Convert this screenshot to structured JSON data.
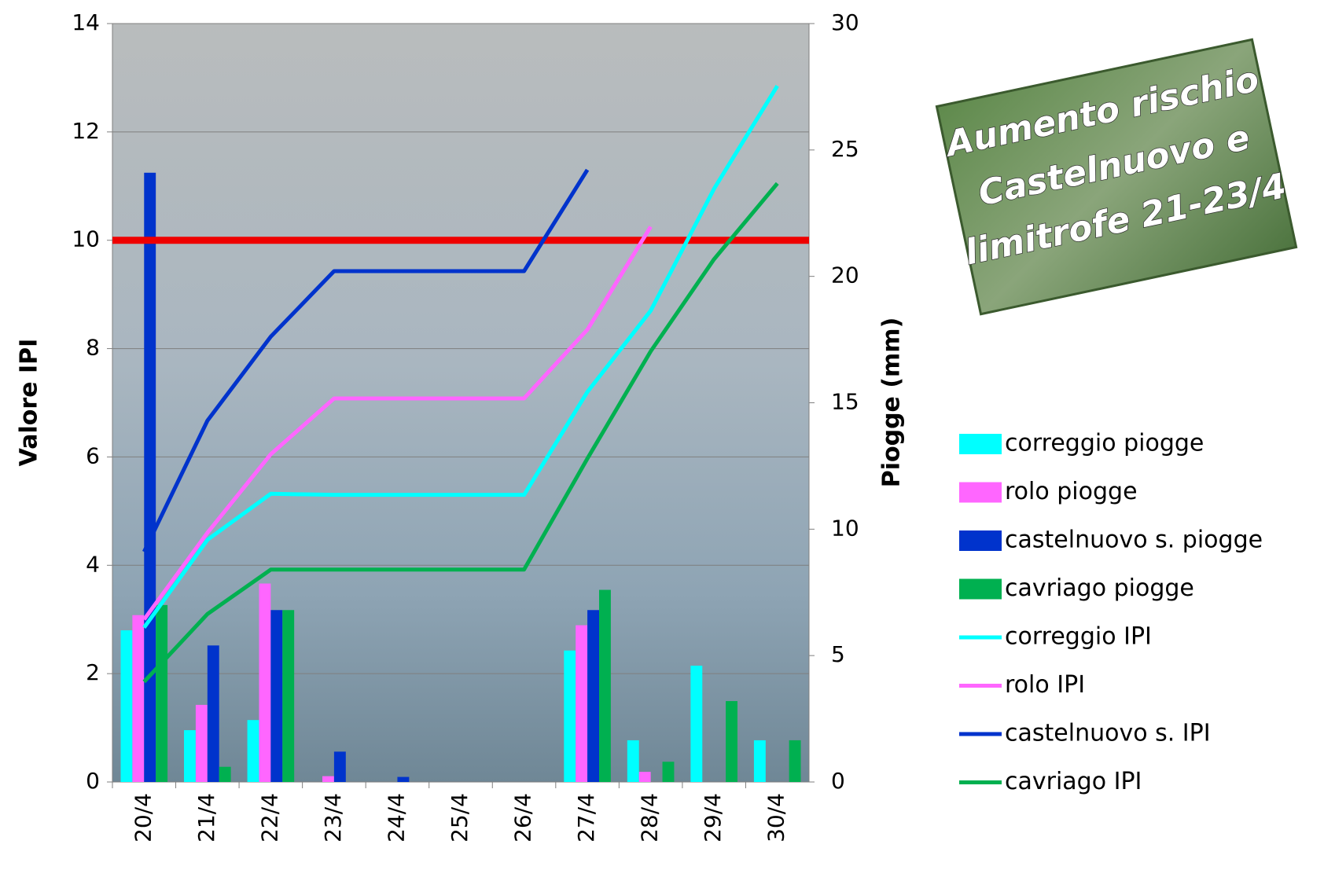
{
  "chart_data": {
    "type": "bar-line",
    "categories": [
      "20/4",
      "21/4",
      "22/4",
      "23/4",
      "24/4",
      "25/4",
      "26/4",
      "27/4",
      "28/4",
      "29/4",
      "30/4"
    ],
    "ylabel": "Valore IPI",
    "y2label": "Piogge (mm)",
    "ylim": [
      0,
      14
    ],
    "yticks": [
      0,
      2,
      4,
      6,
      8,
      10,
      12,
      14
    ],
    "y2lim": [
      0,
      30
    ],
    "y2ticks": [
      0,
      5,
      10,
      15,
      20,
      25,
      30
    ],
    "grid": true,
    "threshold": {
      "value": 10,
      "color": "#ee0000"
    },
    "series": [
      {
        "name": "correggio piogge",
        "kind": "bar",
        "axis": "y2",
        "color": "#00ffff",
        "values": [
          6.0,
          2.05,
          2.45,
          0,
          0,
          0,
          0,
          5.2,
          1.65,
          4.6,
          1.65
        ]
      },
      {
        "name": "rolo piogge",
        "kind": "bar",
        "axis": "y2",
        "color": "#ff66ff",
        "values": [
          6.6,
          3.05,
          7.85,
          0.23,
          0,
          0,
          0,
          6.2,
          0.4,
          0,
          0
        ]
      },
      {
        "name": "castelnuovo s. piogge",
        "kind": "bar",
        "axis": "y2",
        "color": "#0033cc",
        "values": [
          24.1,
          5.4,
          6.8,
          1.2,
          0.2,
          0,
          0,
          6.8,
          0,
          0,
          0
        ]
      },
      {
        "name": "cavriago piogge",
        "kind": "bar",
        "axis": "y2",
        "color": "#00b050",
        "values": [
          7.0,
          0.6,
          6.8,
          0,
          0,
          0,
          0,
          7.6,
          0.8,
          3.2,
          1.65
        ]
      },
      {
        "name": "correggio IPI",
        "kind": "line",
        "color": "#00ffff",
        "values": [
          2.85,
          4.47,
          5.32,
          5.3,
          5.3,
          5.3,
          5.3,
          7.2,
          8.7,
          10.95,
          12.85
        ]
      },
      {
        "name": "rolo IPI",
        "kind": "line",
        "color": "#ff66ff",
        "values": [
          3.0,
          4.6,
          6.05,
          7.08,
          7.08,
          7.08,
          7.08,
          8.35,
          10.25,
          null,
          null
        ]
      },
      {
        "name": "castelnuovo s. IPI",
        "kind": "line",
        "color": "#0033cc",
        "values": [
          4.25,
          6.67,
          8.22,
          9.43,
          9.43,
          9.43,
          9.43,
          11.3,
          null,
          null,
          null
        ]
      },
      {
        "name": "cavriago IPI",
        "kind": "line",
        "color": "#00b050",
        "values": [
          1.85,
          3.1,
          3.92,
          3.92,
          3.92,
          3.92,
          3.92,
          5.97,
          7.95,
          9.65,
          11.05
        ]
      }
    ],
    "annotation": [
      "Aumento rischio",
      "Castelnuovo e",
      "limitrofe 21-23/4"
    ]
  }
}
